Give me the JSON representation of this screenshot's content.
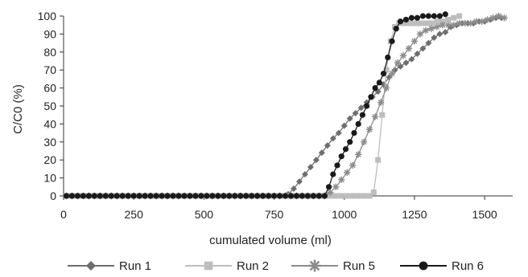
{
  "chart_data": {
    "type": "line",
    "title": "",
    "xlabel": "cumulated volume (ml)",
    "ylabel": "C/C0 (%)",
    "xlim": [
      0,
      1600
    ],
    "ylim": [
      0,
      100
    ],
    "x_ticks": [
      0,
      250,
      500,
      750,
      1000,
      1250,
      1500
    ],
    "y_ticks": [
      0,
      10,
      20,
      30,
      40,
      50,
      60,
      70,
      80,
      90,
      100
    ],
    "grid": false,
    "legend_position": "bottom",
    "series": [
      {
        "name": "Run 1",
        "color": "#6e6e6e",
        "marker": "diamond",
        "x": [
          10,
          30,
          50,
          70,
          90,
          110,
          130,
          150,
          170,
          190,
          210,
          230,
          250,
          270,
          290,
          310,
          330,
          350,
          370,
          390,
          410,
          430,
          450,
          470,
          490,
          510,
          530,
          550,
          570,
          590,
          610,
          630,
          650,
          670,
          690,
          710,
          730,
          750,
          770,
          790,
          800,
          820,
          840,
          860,
          880,
          900,
          920,
          940,
          960,
          980,
          1000,
          1020,
          1040,
          1060,
          1080,
          1100,
          1120,
          1140,
          1160,
          1180,
          1200,
          1220,
          1240,
          1260,
          1280,
          1300,
          1320,
          1340,
          1360,
          1380,
          1400,
          1420,
          1440,
          1460,
          1480,
          1500,
          1520,
          1540,
          1560
        ],
        "y": [
          0,
          0,
          0,
          0,
          0,
          0,
          0,
          0,
          0,
          0,
          0,
          0,
          0,
          0,
          0,
          0,
          0,
          0,
          0,
          0,
          0,
          0,
          0,
          0,
          0,
          0,
          0,
          0,
          0,
          0,
          0,
          0,
          0,
          0,
          0,
          0,
          0,
          0,
          0,
          0,
          1,
          4,
          8,
          12,
          16,
          20,
          24,
          28,
          32,
          35,
          39,
          43,
          46,
          49,
          52,
          55,
          58,
          62,
          66,
          70,
          72,
          74,
          76,
          79,
          82,
          85,
          88,
          90,
          91,
          94,
          95,
          96,
          96,
          96,
          97,
          97,
          98,
          99,
          99
        ]
      },
      {
        "name": "Run 2",
        "color": "#bdbdbd",
        "marker": "square",
        "x": [
          10,
          30,
          50,
          70,
          90,
          110,
          130,
          150,
          170,
          190,
          210,
          230,
          250,
          270,
          290,
          310,
          330,
          350,
          370,
          390,
          410,
          430,
          450,
          470,
          490,
          510,
          530,
          550,
          570,
          590,
          610,
          630,
          650,
          670,
          690,
          710,
          730,
          750,
          770,
          790,
          810,
          830,
          850,
          870,
          890,
          910,
          930,
          950,
          970,
          990,
          1010,
          1030,
          1050,
          1070,
          1090,
          1105,
          1120,
          1135,
          1150,
          1165,
          1180,
          1195,
          1210,
          1230,
          1250,
          1270,
          1290,
          1310,
          1330,
          1350,
          1370,
          1390,
          1410
        ],
        "y": [
          0,
          0,
          0,
          0,
          0,
          0,
          0,
          0,
          0,
          0,
          0,
          0,
          0,
          0,
          0,
          0,
          0,
          0,
          0,
          0,
          0,
          0,
          0,
          0,
          0,
          0,
          0,
          0,
          0,
          0,
          0,
          0,
          0,
          0,
          0,
          0,
          0,
          0,
          0,
          0,
          0,
          0,
          0,
          0,
          0,
          0,
          0,
          0,
          0,
          0,
          0,
          0,
          0,
          0,
          0,
          2,
          20,
          45,
          70,
          86,
          94,
          96,
          96,
          96,
          96,
          96,
          96,
          96,
          97,
          97,
          98,
          99,
          100
        ]
      },
      {
        "name": "Run 5",
        "color": "#8c8c8c",
        "marker": "asterisk",
        "x": [
          10,
          30,
          50,
          70,
          90,
          110,
          130,
          150,
          170,
          190,
          210,
          230,
          250,
          270,
          290,
          310,
          330,
          350,
          370,
          390,
          410,
          430,
          450,
          470,
          490,
          510,
          530,
          550,
          570,
          590,
          610,
          630,
          650,
          670,
          690,
          710,
          730,
          750,
          770,
          790,
          810,
          830,
          850,
          870,
          890,
          910,
          930,
          950,
          970,
          990,
          1010,
          1030,
          1050,
          1070,
          1090,
          1110,
          1130,
          1150,
          1170,
          1190,
          1210,
          1230,
          1250,
          1270,
          1290,
          1310,
          1330,
          1350,
          1370,
          1390,
          1410,
          1430,
          1450,
          1470,
          1490,
          1510,
          1530,
          1550,
          1570
        ],
        "y": [
          0,
          0,
          0,
          0,
          0,
          0,
          0,
          0,
          0,
          0,
          0,
          0,
          0,
          0,
          0,
          0,
          0,
          0,
          0,
          0,
          0,
          0,
          0,
          0,
          0,
          0,
          0,
          0,
          0,
          0,
          0,
          0,
          0,
          0,
          0,
          0,
          0,
          0,
          0,
          0,
          0,
          0,
          0,
          0,
          0,
          0,
          0,
          2,
          5,
          9,
          13,
          17,
          23,
          30,
          37,
          44,
          52,
          60,
          68,
          74,
          78,
          82,
          86,
          90,
          92,
          93,
          94,
          95,
          95,
          95,
          96,
          96,
          96,
          97,
          97,
          98,
          99,
          100,
          99
        ]
      },
      {
        "name": "Run 6",
        "color": "#1a1a1a",
        "marker": "circle",
        "x": [
          10,
          30,
          50,
          70,
          90,
          110,
          130,
          150,
          170,
          190,
          210,
          230,
          250,
          270,
          290,
          310,
          330,
          350,
          370,
          390,
          410,
          430,
          450,
          470,
          490,
          510,
          530,
          550,
          570,
          590,
          610,
          630,
          650,
          670,
          690,
          710,
          730,
          750,
          770,
          790,
          810,
          830,
          850,
          870,
          890,
          910,
          930,
          945,
          960,
          975,
          990,
          1005,
          1020,
          1035,
          1050,
          1065,
          1080,
          1095,
          1110,
          1125,
          1140,
          1155,
          1170,
          1185,
          1200,
          1220,
          1240,
          1260,
          1280,
          1300,
          1320,
          1340,
          1360
        ],
        "y": [
          0,
          0,
          0,
          0,
          0,
          0,
          0,
          0,
          0,
          0,
          0,
          0,
          0,
          0,
          0,
          0,
          0,
          0,
          0,
          0,
          0,
          0,
          0,
          0,
          0,
          0,
          0,
          0,
          0,
          0,
          0,
          0,
          0,
          0,
          0,
          0,
          0,
          0,
          0,
          0,
          0,
          0,
          0,
          0,
          0,
          0,
          0,
          5,
          12,
          17,
          22,
          26,
          30,
          35,
          40,
          45,
          50,
          55,
          60,
          63,
          68,
          77,
          86,
          93,
          97,
          98,
          99,
          99,
          100,
          100,
          100,
          100,
          101
        ]
      }
    ]
  }
}
